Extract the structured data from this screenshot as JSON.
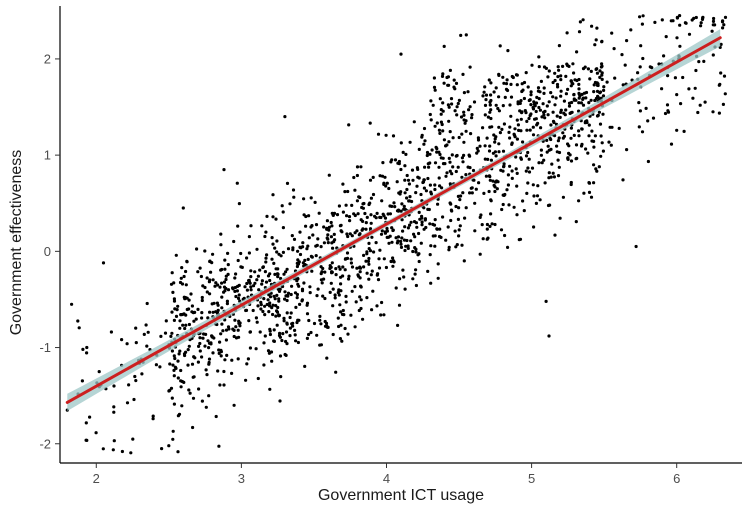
{
  "chart_data": {
    "type": "scatter",
    "title": "",
    "xlabel": "Government ICT usage",
    "ylabel": "Government effectiveness",
    "xlim": [
      1.75,
      6.45
    ],
    "ylim": [
      -2.2,
      2.55
    ],
    "x_ticks": [
      2,
      3,
      4,
      5,
      6
    ],
    "y_ticks": [
      -2,
      -1,
      0,
      1,
      2
    ],
    "grid": false,
    "legend": "none",
    "colors": {
      "points": "#000000",
      "fit_line": "#cc1f1f",
      "confidence_band": "#9ec7c7"
    },
    "point_cloud": {
      "n_points": 1800,
      "x_range": [
        1.8,
        6.35
      ],
      "y_range": [
        -2.1,
        2.45
      ],
      "dense_region": {
        "x": [
          2.5,
          5.5
        ],
        "y": [
          -1.3,
          2.0
        ]
      }
    },
    "sample_points": [
      {
        "x": 1.8,
        "y": -1.65
      },
      {
        "x": 1.83,
        "y": -0.55
      },
      {
        "x": 2.02,
        "y": -1.25
      },
      {
        "x": 2.05,
        "y": -0.12
      },
      {
        "x": 2.18,
        "y": -2.08
      },
      {
        "x": 2.45,
        "y": -2.05
      },
      {
        "x": 2.5,
        "y": -2.02
      },
      {
        "x": 2.6,
        "y": 0.45
      },
      {
        "x": 2.88,
        "y": 0.85
      },
      {
        "x": 2.95,
        "y": -1.6
      },
      {
        "x": 3.3,
        "y": 1.4
      },
      {
        "x": 4.1,
        "y": 2.05
      },
      {
        "x": 4.55,
        "y": 2.25
      },
      {
        "x": 5.12,
        "y": -0.88
      },
      {
        "x": 5.1,
        "y": -0.52
      },
      {
        "x": 5.45,
        "y": 2.32
      },
      {
        "x": 5.85,
        "y": 2.38
      },
      {
        "x": 6.02,
        "y": 2.45
      },
      {
        "x": 6.3,
        "y": 2.12
      },
      {
        "x": 5.72,
        "y": 0.05
      },
      {
        "x": 6.25,
        "y": 1.45
      }
    ],
    "fit": {
      "method": "linear",
      "x_start": 1.8,
      "y_start": -1.57,
      "x_end": 6.3,
      "y_end": 2.22,
      "band_halfwidth_ends": 0.09,
      "band_halfwidth_center": 0.03
    }
  }
}
